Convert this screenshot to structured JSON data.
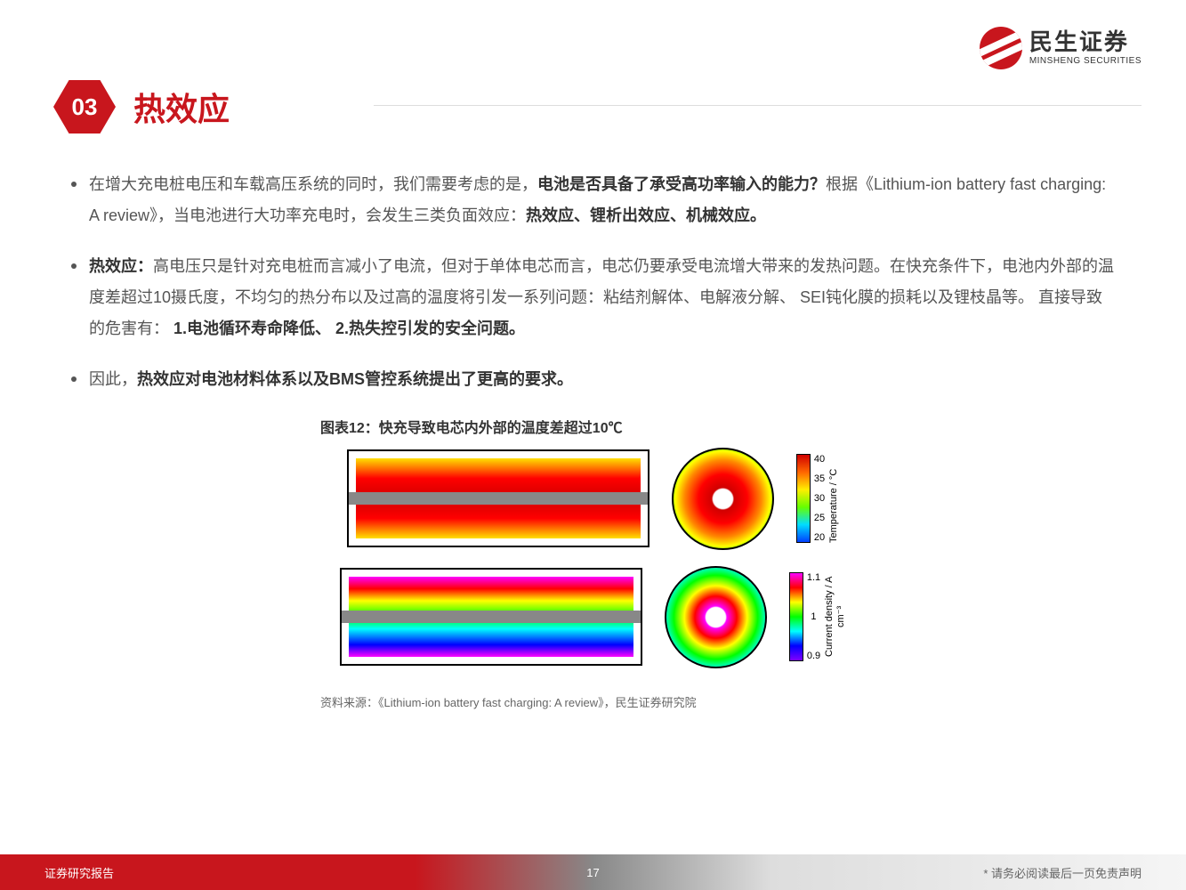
{
  "logo": {
    "cn": "民生证券",
    "en": "MINSHENG SECURITIES"
  },
  "section": {
    "num": "03",
    "title": "热效应"
  },
  "bullets": {
    "b1_pre": "在增大充电桩电压和车载高压系统的同时，我们需要考虑的是，",
    "b1_bold1": "电池是否具备了承受高功率输入的能力？",
    "b1_mid": "根据《Lithium-ion battery fast charging: A review》，当电池进行大功率充电时，会发生三类负面效应：",
    "b1_bold2": "热效应、锂析出效应、机械效应。",
    "b2_bold1": "热效应：",
    "b2_mid": "高电压只是针对充电桩而言减小了电流，但对于单体电芯而言，电芯仍要承受电流增大带来的发热问题。在快充条件下，电池内外部的温度差超过10摄氏度，不均匀的热分布以及过高的温度将引发一系列问题：粘结剂解体、电解液分解、 SEI钝化膜的损耗以及锂枝晶等。 直接导致的危害有： ",
    "b2_bold2": "1.电池循环寿命降低、 2.热失控引发的安全问题。",
    "b3_pre": "因此，",
    "b3_bold": "热效应对电池材料体系以及BMS管控系统提出了更高的要求。"
  },
  "figure": {
    "title": "图表12：快充导致电芯内外部的温度差超过10℃",
    "source": "资料来源：《Lithium-ion battery fast charging: A review》，民生证券研究院",
    "temp_bar": {
      "label": "Temperature / °C",
      "ticks": [
        "40",
        "35",
        "30",
        "25",
        "20"
      ]
    },
    "dens_bar": {
      "label": "Current density / A cm⁻³",
      "ticks": [
        "1.1",
        "1",
        "0.9"
      ]
    }
  },
  "footer": {
    "left": "证券研究报告",
    "page": "17",
    "right": "* 请务必阅读最后一页免责声明"
  }
}
